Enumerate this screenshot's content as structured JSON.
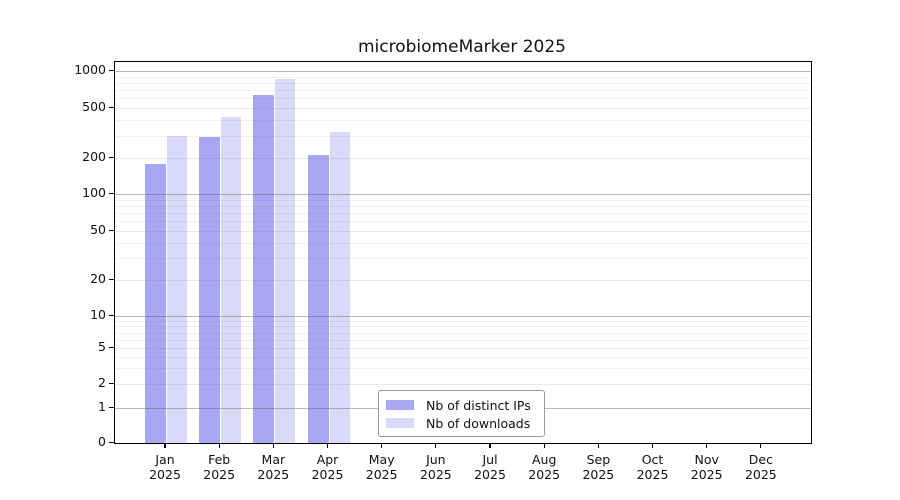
{
  "chart_data": {
    "type": "bar",
    "title": "microbiomeMarker 2025",
    "categories": [
      "Jan",
      "Feb",
      "Mar",
      "Apr",
      "May",
      "Jun",
      "Jul",
      "Aug",
      "Sep",
      "Oct",
      "Nov",
      "Dec"
    ],
    "x_year_label": "2025",
    "series": [
      {
        "name": "Nb of distinct IPs",
        "color": "#a7a7f3",
        "values": [
          180,
          292,
          640,
          213,
          0,
          0,
          0,
          0,
          0,
          0,
          0,
          0
        ]
      },
      {
        "name": "Nb of downloads",
        "color": "#d9d9f8",
        "values": [
          297,
          422,
          860,
          320,
          0,
          0,
          0,
          0,
          0,
          0,
          0,
          0
        ]
      }
    ],
    "yscale": "symlog",
    "yticks": [
      0,
      1,
      2,
      5,
      10,
      20,
      50,
      100,
      200,
      500,
      1000
    ],
    "ylim": [
      0,
      1070
    ],
    "grid": true,
    "legend_position": "bottom-center"
  },
  "colors": {
    "axis": "#000000",
    "major_grid": "#b3b3b3",
    "minor_grid": "#ececec",
    "text": "#111111",
    "background": "#ffffff"
  }
}
